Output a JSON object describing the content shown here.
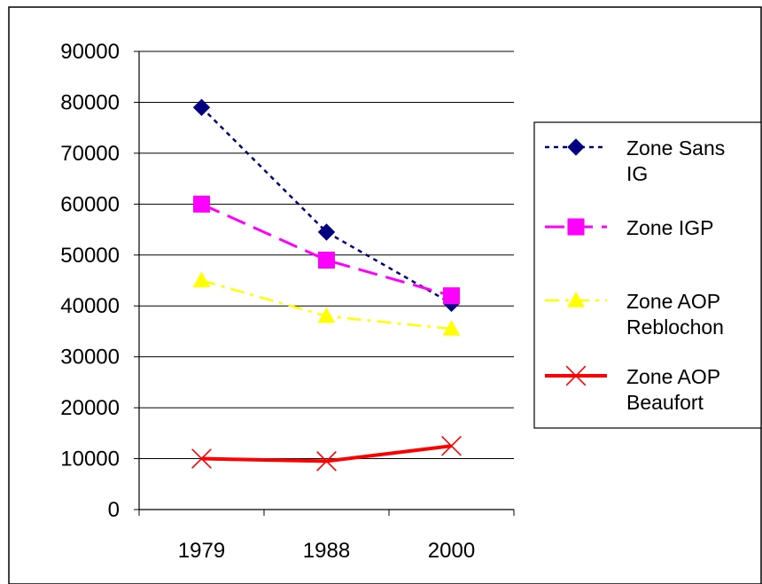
{
  "chart_data": {
    "type": "line",
    "title": "",
    "xlabel": "",
    "ylabel": "",
    "categories": [
      "1979",
      "1988",
      "2000"
    ],
    "ylim": [
      0,
      90000
    ],
    "y_ticks": [
      0,
      10000,
      20000,
      30000,
      40000,
      50000,
      60000,
      70000,
      80000,
      90000
    ],
    "grid": "horizontal",
    "legend_position": "right",
    "series": [
      {
        "name_lines": [
          "Zone Sans",
          "IG"
        ],
        "values": [
          79000,
          54500,
          40500
        ],
        "color": "#000080",
        "line_style": "dotted",
        "marker": "diamond"
      },
      {
        "name_lines": [
          "Zone IGP"
        ],
        "values": [
          60000,
          49000,
          42000
        ],
        "color": "#ff00ff",
        "line_style": "long-dash",
        "marker": "square"
      },
      {
        "name_lines": [
          "Zone AOP",
          "Reblochon"
        ],
        "values": [
          45000,
          38000,
          35500
        ],
        "color": "#ffff00",
        "line_style": "dash-dot",
        "marker": "triangle"
      },
      {
        "name_lines": [
          "Zone AOP",
          "Beaufort"
        ],
        "values": [
          10000,
          9500,
          12500
        ],
        "color": "#ff0000",
        "line_style": "solid",
        "marker": "x"
      }
    ]
  }
}
